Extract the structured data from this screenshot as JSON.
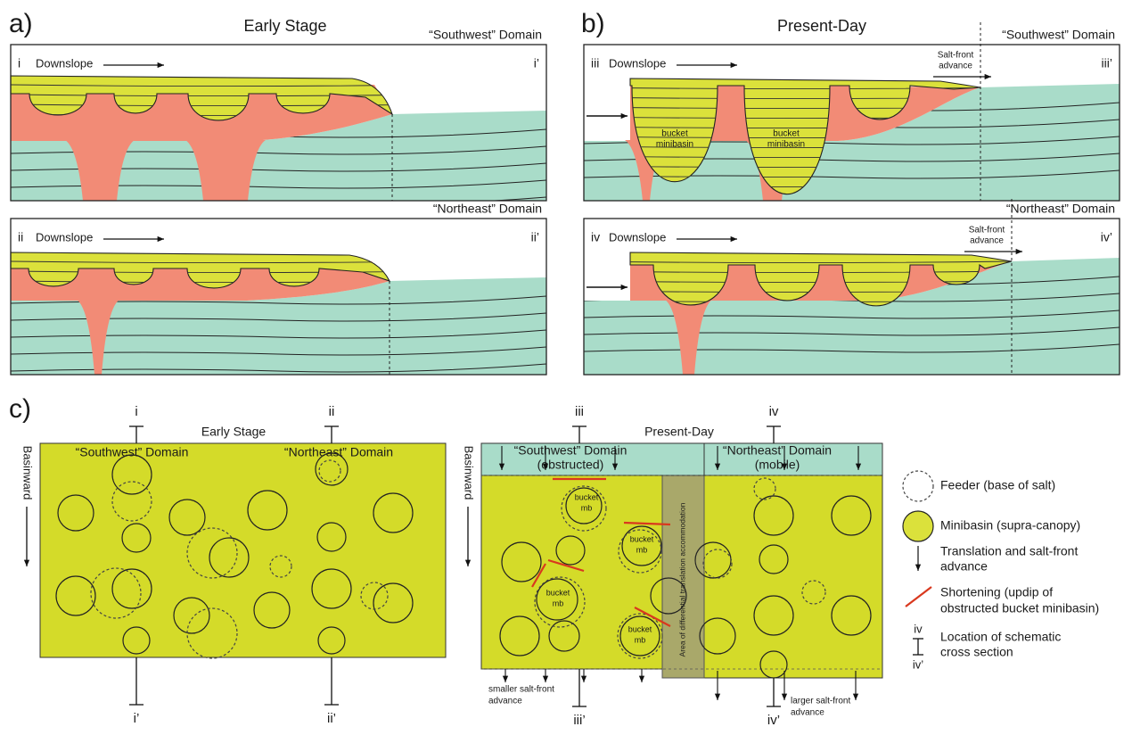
{
  "panel_a": {
    "label": "a)",
    "title": "Early Stage",
    "sections": [
      {
        "domain": "“Southwest” Domain",
        "start": "i",
        "end": "i’",
        "direction": "Downslope"
      },
      {
        "domain": "“Northeast” Domain",
        "start": "ii",
        "end": "ii’",
        "direction": "Downslope"
      }
    ]
  },
  "panel_b": {
    "label": "b)",
    "title": "Present-Day",
    "sections": [
      {
        "domain": "“Southwest” Domain",
        "start": "iii",
        "end": "iii’",
        "direction": "Downslope",
        "salt_front": [
          "Salt-front",
          "advance"
        ],
        "minibasins": [
          [
            "bucket",
            "minibasin"
          ],
          [
            "bucket",
            "minibasin"
          ]
        ]
      },
      {
        "domain": "“Northeast” Domain",
        "start": "iv",
        "end": "iv’",
        "direction": "Downslope",
        "salt_front": [
          "Salt-front",
          "advance"
        ]
      }
    ]
  },
  "panel_c": {
    "label": "c)",
    "early": {
      "title": "Early Stage",
      "direction": "Basinward",
      "domains": [
        "“Southwest” Domain",
        "“Northeast” Domain"
      ],
      "sections": [
        [
          "i",
          "i’"
        ],
        [
          "ii",
          "ii’"
        ]
      ]
    },
    "present": {
      "title": "Present-Day",
      "direction": "Basinward",
      "domains": [
        [
          "“Southwest” Domain",
          "(obstructed)"
        ],
        [
          "“Northeast” Domain",
          "(mobile)"
        ]
      ],
      "sections": [
        [
          "iii",
          "iii’"
        ],
        [
          "iv",
          "iv’"
        ]
      ],
      "minibasins": [
        [
          "bucket",
          "mb"
        ],
        [
          "bucket",
          "mb"
        ],
        [
          "bucket",
          "mb"
        ],
        [
          "bucket",
          "mb"
        ]
      ],
      "accommodation": "Area of differential translation accommodation",
      "advance": [
        [
          "smaller salt-front",
          "advance"
        ],
        [
          "larger salt-front",
          "advance"
        ]
      ]
    },
    "legend": [
      {
        "label": [
          "Feeder (base of salt)"
        ]
      },
      {
        "label": [
          "Minibasin (supra-canopy)"
        ]
      },
      {
        "label": [
          "Translation and salt-front",
          "advance"
        ]
      },
      {
        "label": [
          "Shortening (updip of",
          "obstructed bucket minibasin)"
        ]
      },
      {
        "label": [
          "Location of schematic",
          "cross section"
        ],
        "symbol": [
          "iv",
          "iv’"
        ]
      }
    ]
  }
}
